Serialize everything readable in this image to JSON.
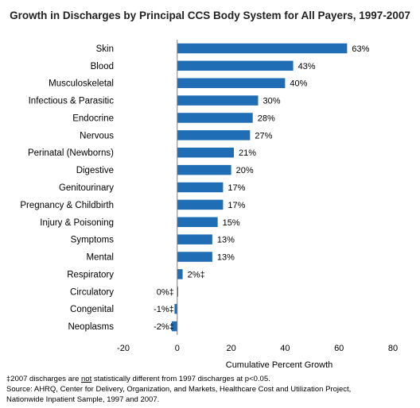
{
  "chart_data": {
    "type": "bar",
    "orientation": "horizontal",
    "title": "Growth in Discharges by Principal CCS Body System for All Payers, 1997-2007",
    "xlabel": "Cumulative Percent Growth",
    "ylabel": "",
    "xlim": [
      -20,
      80
    ],
    "xticks": [
      -20,
      0,
      20,
      40,
      60,
      80
    ],
    "grid": false,
    "legend": "none",
    "bar_color": "#1f6db5",
    "categories": [
      "Skin",
      "Blood",
      "Musculoskeletal",
      "Infectious & Parasitic",
      "Endocrine",
      "Nervous",
      "Perinatal (Newborns)",
      "Digestive",
      "Genitourinary",
      "Pregnancy & Childbirth",
      "Injury & Poisoning",
      "Symptoms",
      "Mental",
      "Respiratory",
      "Circulatory",
      "Congenital",
      "Neoplasms"
    ],
    "values": [
      63,
      43,
      40,
      30,
      28,
      27,
      21,
      20,
      17,
      17,
      15,
      13,
      13,
      2,
      0,
      -1,
      -2
    ],
    "value_labels": [
      "63%",
      "43%",
      "40%",
      "30%",
      "28%",
      "27%",
      "21%",
      "20%",
      "17%",
      "17%",
      "15%",
      "13%",
      "13%",
      "2%‡",
      "0%‡",
      "-1%‡",
      "-2%‡"
    ]
  },
  "footnote": {
    "line1_pre": "‡2007 discharges are ",
    "line1_not": "not",
    "line1_post": " statistically different from 1997 discharges at p<0.05.",
    "line2": "Source:  AHRQ, Center for Delivery, Organization, and Markets, Healthcare Cost and Utilization Project,",
    "line3": "Nationwide Inpatient Sample, 1997 and 2007."
  }
}
